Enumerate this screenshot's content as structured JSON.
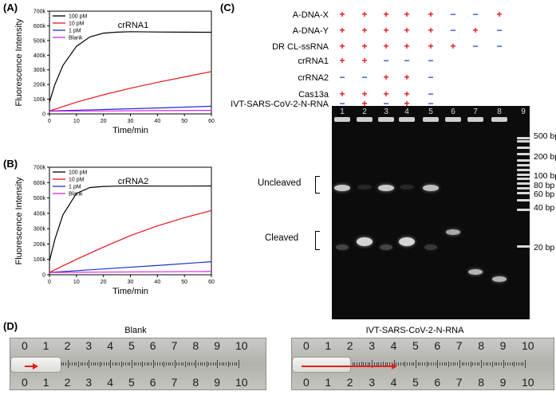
{
  "panels": {
    "a": "(A)",
    "b": "(B)",
    "c": "(C)",
    "d": "(D)"
  },
  "chart_data": [
    {
      "type": "line",
      "title": "crRNA1",
      "xlabel": "Time/min",
      "ylabel": "Fluorescence Intensity",
      "xlim": [
        0,
        60
      ],
      "ylim": [
        0,
        700000
      ],
      "x_ticks": [
        "0",
        "10",
        "20",
        "30",
        "40",
        "50",
        "60"
      ],
      "y_ticks": [
        "0",
        "100k",
        "200k",
        "300k",
        "400k",
        "500k",
        "600k",
        "700k"
      ],
      "legend_position": "top-left",
      "series": [
        {
          "name": "100 pM",
          "color": "#000000",
          "x": [
            0,
            2,
            5,
            10,
            15,
            20,
            25,
            30,
            40,
            50,
            60
          ],
          "values": [
            80000,
            200000,
            330000,
            460000,
            525000,
            550000,
            557000,
            560000,
            558000,
            557000,
            556000
          ]
        },
        {
          "name": "10 pM",
          "color": "#e8141b",
          "x": [
            0,
            10,
            20,
            30,
            40,
            50,
            60
          ],
          "values": [
            20000,
            80000,
            130000,
            175000,
            215000,
            252000,
            288000
          ]
        },
        {
          "name": "1 pM",
          "color": "#1f2fd1",
          "x": [
            0,
            20,
            40,
            60
          ],
          "values": [
            20000,
            30000,
            40000,
            52000
          ]
        },
        {
          "name": "Blank",
          "color": "#e020e0",
          "x": [
            0,
            20,
            40,
            60
          ],
          "values": [
            18000,
            20000,
            22000,
            24000
          ]
        }
      ]
    },
    {
      "type": "line",
      "title": "crRNA2",
      "xlabel": "Time/min",
      "ylabel": "Fluorescence Intensity",
      "xlim": [
        0,
        60
      ],
      "ylim": [
        0,
        700000
      ],
      "x_ticks": [
        "0",
        "10",
        "20",
        "30",
        "40",
        "50",
        "60"
      ],
      "y_ticks": [
        "0",
        "100k",
        "200k",
        "300k",
        "400k",
        "500k",
        "600k",
        "700k"
      ],
      "legend_position": "top-left",
      "series": [
        {
          "name": "100 pM",
          "color": "#000000",
          "x": [
            0,
            2,
            5,
            10,
            15,
            20,
            25,
            30,
            40,
            50,
            60
          ],
          "values": [
            90000,
            230000,
            390000,
            530000,
            568000,
            575000,
            577000,
            578000,
            577000,
            577000,
            578000
          ]
        },
        {
          "name": "10 pM",
          "color": "#e8141b",
          "x": [
            0,
            10,
            20,
            30,
            40,
            50,
            60
          ],
          "values": [
            15000,
            100000,
            180000,
            255000,
            318000,
            372000,
            418000
          ]
        },
        {
          "name": "1 pM",
          "color": "#1f2fd1",
          "x": [
            0,
            20,
            40,
            60
          ],
          "values": [
            15000,
            38000,
            60000,
            85000
          ]
        },
        {
          "name": "Blank",
          "color": "#e020e0",
          "x": [
            0,
            20,
            40,
            60
          ],
          "values": [
            15000,
            17000,
            19000,
            21000
          ]
        }
      ]
    }
  ],
  "gel_table": {
    "rows": [
      {
        "label": "A-DNA-X",
        "marks": [
          "+",
          "+",
          "+",
          "+",
          "+",
          "−",
          "−",
          "+"
        ]
      },
      {
        "label": "A-DNA-Y",
        "marks": [
          "+",
          "+",
          "+",
          "+",
          "+",
          "−",
          "+",
          "−"
        ]
      },
      {
        "label": "DR CL-ssRNA",
        "marks": [
          "+",
          "+",
          "+",
          "+",
          "+",
          "+",
          "−",
          "−"
        ]
      },
      {
        "label": "crRNA1",
        "marks": [
          "+",
          "+",
          "−",
          "−",
          "−",
          "",
          "",
          ""
        ]
      },
      {
        "label": "crRNA2",
        "marks": [
          "−",
          "−",
          "+",
          "+",
          "−",
          "",
          "",
          ""
        ]
      },
      {
        "label": "Cas13a",
        "marks": [
          "+",
          "+",
          "+",
          "+",
          "−",
          "",
          "",
          ""
        ]
      },
      {
        "label": "IVT-SARS-CoV-2-N-RNA",
        "marks": [
          "−",
          "+",
          "−",
          "+",
          "−",
          "",
          "",
          ""
        ]
      }
    ],
    "lanes": [
      "1",
      "2",
      "3",
      "4",
      "5",
      "6",
      "7",
      "8",
      "9"
    ],
    "side_labels": {
      "uncleaved": "Uncleaved",
      "cleaved": "Cleaved"
    },
    "bp_labels": [
      "500 bp",
      "200 bp",
      "100 bp",
      "80 bp",
      "60 bp",
      "40 bp",
      "20 bp"
    ]
  },
  "rulers": [
    {
      "title": "Blank",
      "numbers": [
        "0",
        "1",
        "2",
        "3",
        "4",
        "5",
        "6",
        "7",
        "8",
        "9",
        "10"
      ]
    },
    {
      "title": "IVT-SARS-CoV-2-N-RNA",
      "numbers": [
        "0",
        "1",
        "2",
        "3",
        "4",
        "5",
        "6",
        "7",
        "8",
        "9",
        "10"
      ]
    }
  ],
  "colors": {
    "plus": "#e8141b",
    "minus": "#2a4bd7",
    "arrow": "#e3201b"
  }
}
